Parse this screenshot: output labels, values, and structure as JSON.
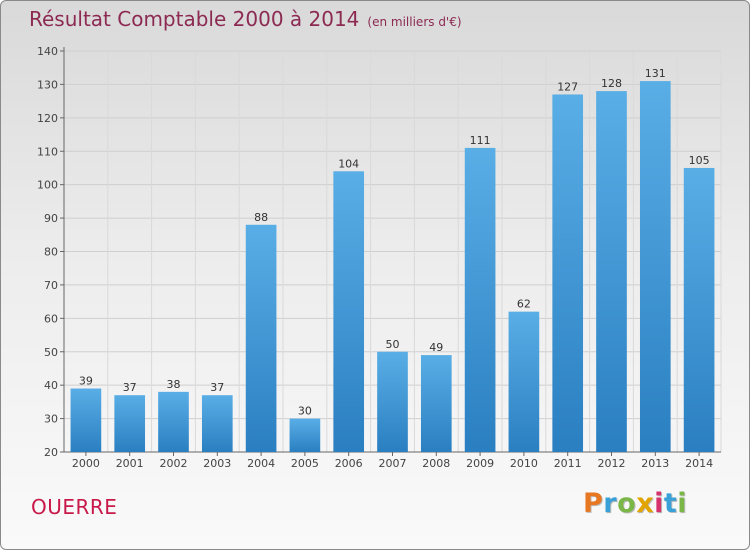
{
  "header": {
    "title": "Résultat Comptable 2000 à 2014",
    "subtitle": "(en milliers d'€)"
  },
  "place_name": "OUERRE",
  "logo": {
    "text": "Proxiti",
    "colors": [
      "#e87722",
      "#3aa0d8",
      "#7ab648",
      "#e2a400",
      "#d6336c",
      "#3aa0d8",
      "#7ab648"
    ]
  },
  "chart_data": {
    "type": "bar",
    "title": "Résultat Comptable 2000 à 2014",
    "subtitle": "(en milliers d'€)",
    "xlabel": "",
    "ylabel": "",
    "categories": [
      "2000",
      "2001",
      "2002",
      "2003",
      "2004",
      "2005",
      "2006",
      "2007",
      "2008",
      "2009",
      "2010",
      "2011",
      "2012",
      "2013",
      "2014"
    ],
    "values": [
      39,
      37,
      38,
      37,
      88,
      30,
      104,
      50,
      49,
      111,
      62,
      127,
      128,
      131,
      105
    ],
    "ylim": [
      20,
      140
    ],
    "yticks": [
      20,
      30,
      40,
      50,
      60,
      70,
      80,
      90,
      100,
      110,
      120,
      130,
      140
    ],
    "grid": true,
    "bar_color_top": "#5aaee6",
    "bar_color_bottom": "#2a7fc1",
    "label_color": "#333333"
  }
}
